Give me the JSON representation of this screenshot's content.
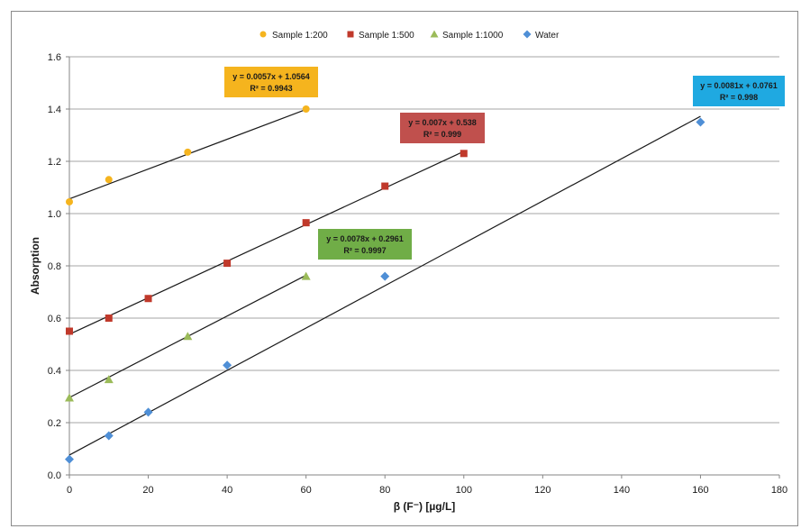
{
  "chart_data": {
    "type": "scatter",
    "xlabel": "β (F⁻) [µg/L]",
    "ylabel": "Absorption",
    "xlim": [
      0,
      180
    ],
    "ylim": [
      0,
      1.6
    ],
    "xticks": [
      "0",
      "20",
      "40",
      "60",
      "80",
      "100",
      "120",
      "140",
      "160",
      "180"
    ],
    "yticks": [
      "0.0",
      "0.2",
      "0.4",
      "0.6",
      "0.8",
      "1.0",
      "1.2",
      "1.4",
      "1.6"
    ],
    "grid": "horizontal",
    "legend_position": "top",
    "series": [
      {
        "name": "Sample 1:200",
        "marker": "circle",
        "color": "#f5b41e",
        "x": [
          0,
          10,
          30,
          60
        ],
        "y": [
          1.045,
          1.13,
          1.235,
          1.4
        ],
        "trendline": {
          "slope": 0.0057,
          "intercept": 1.0564,
          "x_range": [
            0,
            60
          ]
        },
        "equation": "y = 0.0057x + 1.0564",
        "r2": "R² = 0.9943",
        "label_bg": "#f5b41e"
      },
      {
        "name": "Sample 1:500",
        "marker": "square",
        "color": "#c0392b",
        "x": [
          0,
          10,
          20,
          40,
          60,
          80,
          100
        ],
        "y": [
          0.55,
          0.6,
          0.675,
          0.81,
          0.965,
          1.105,
          1.23
        ],
        "trendline": {
          "slope": 0.007,
          "intercept": 0.538,
          "x_range": [
            0,
            100
          ]
        },
        "equation": "y = 0.007x + 0.538",
        "r2": "R² = 0.999",
        "label_bg": "#c0504d"
      },
      {
        "name": "Sample 1:1000",
        "marker": "triangle",
        "color": "#9bbb59",
        "x": [
          0,
          10,
          30,
          60
        ],
        "y": [
          0.295,
          0.365,
          0.53,
          0.76
        ],
        "trendline": {
          "slope": 0.0078,
          "intercept": 0.2961,
          "x_range": [
            0,
            60
          ]
        },
        "equation": "y = 0.0078x + 0.2961",
        "r2": "R² = 0.9997",
        "label_bg": "#70ad47"
      },
      {
        "name": "Water",
        "marker": "diamond",
        "color": "#4f8fd6",
        "x": [
          0,
          10,
          20,
          40,
          80,
          160
        ],
        "y": [
          0.06,
          0.15,
          0.24,
          0.42,
          0.76,
          1.35
        ],
        "trendline": {
          "slope": 0.0081,
          "intercept": 0.0761,
          "x_range": [
            0,
            160
          ]
        },
        "equation": "y = 0.0081x + 0.0761",
        "r2": "R² = 0.998",
        "label_bg": "#1fa9e1"
      }
    ]
  }
}
